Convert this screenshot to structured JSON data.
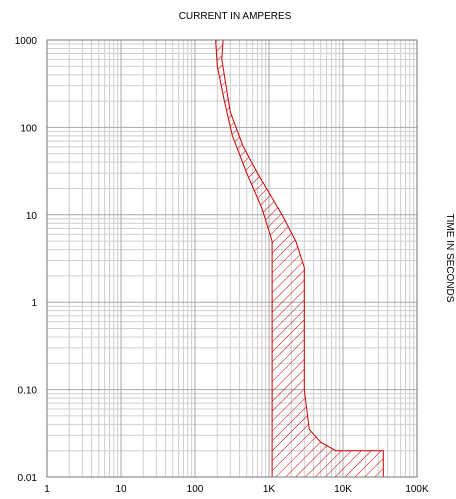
{
  "chart_data": {
    "type": "area",
    "title": "CURRENT IN AMPERES",
    "ylabel": "TIME IN SECONDS",
    "x_scale": "log",
    "y_scale": "log",
    "xlim": [
      1,
      100000
    ],
    "ylim": [
      0.01,
      1000
    ],
    "grid": true,
    "x_ticks": [
      {
        "value": 1,
        "label": "1"
      },
      {
        "value": 10,
        "label": "10"
      },
      {
        "value": 100,
        "label": "100"
      },
      {
        "value": 1000,
        "label": "1K"
      },
      {
        "value": 10000,
        "label": "10K"
      },
      {
        "value": 100000,
        "label": "100K"
      }
    ],
    "y_ticks": [
      {
        "value": 1000,
        "label": "1000"
      },
      {
        "value": 100,
        "label": "100"
      },
      {
        "value": 10,
        "label": "10"
      },
      {
        "value": 1,
        "label": "1"
      },
      {
        "value": 0.1,
        "label": "0.10"
      },
      {
        "value": 0.01,
        "label": "0.01"
      }
    ],
    "band": {
      "fill_pattern": "hatched",
      "color": "#cc0000",
      "polygon": [
        {
          "x": 190,
          "y": 1000
        },
        {
          "x": 240,
          "y": 1000
        },
        {
          "x": 230,
          "y": 600
        },
        {
          "x": 300,
          "y": 150
        },
        {
          "x": 450,
          "y": 60
        },
        {
          "x": 700,
          "y": 30
        },
        {
          "x": 1500,
          "y": 10
        },
        {
          "x": 2300,
          "y": 5
        },
        {
          "x": 3000,
          "y": 2.5
        },
        {
          "x": 3000,
          "y": 0.1
        },
        {
          "x": 3500,
          "y": 0.035
        },
        {
          "x": 5000,
          "y": 0.025
        },
        {
          "x": 8000,
          "y": 0.02
        },
        {
          "x": 35000,
          "y": 0.02
        },
        {
          "x": 35000,
          "y": 0.01
        },
        {
          "x": 1100,
          "y": 0.01
        },
        {
          "x": 1100,
          "y": 5
        },
        {
          "x": 800,
          "y": 12
        },
        {
          "x": 500,
          "y": 30
        },
        {
          "x": 320,
          "y": 80
        },
        {
          "x": 250,
          "y": 200
        },
        {
          "x": 200,
          "y": 500
        }
      ]
    }
  }
}
